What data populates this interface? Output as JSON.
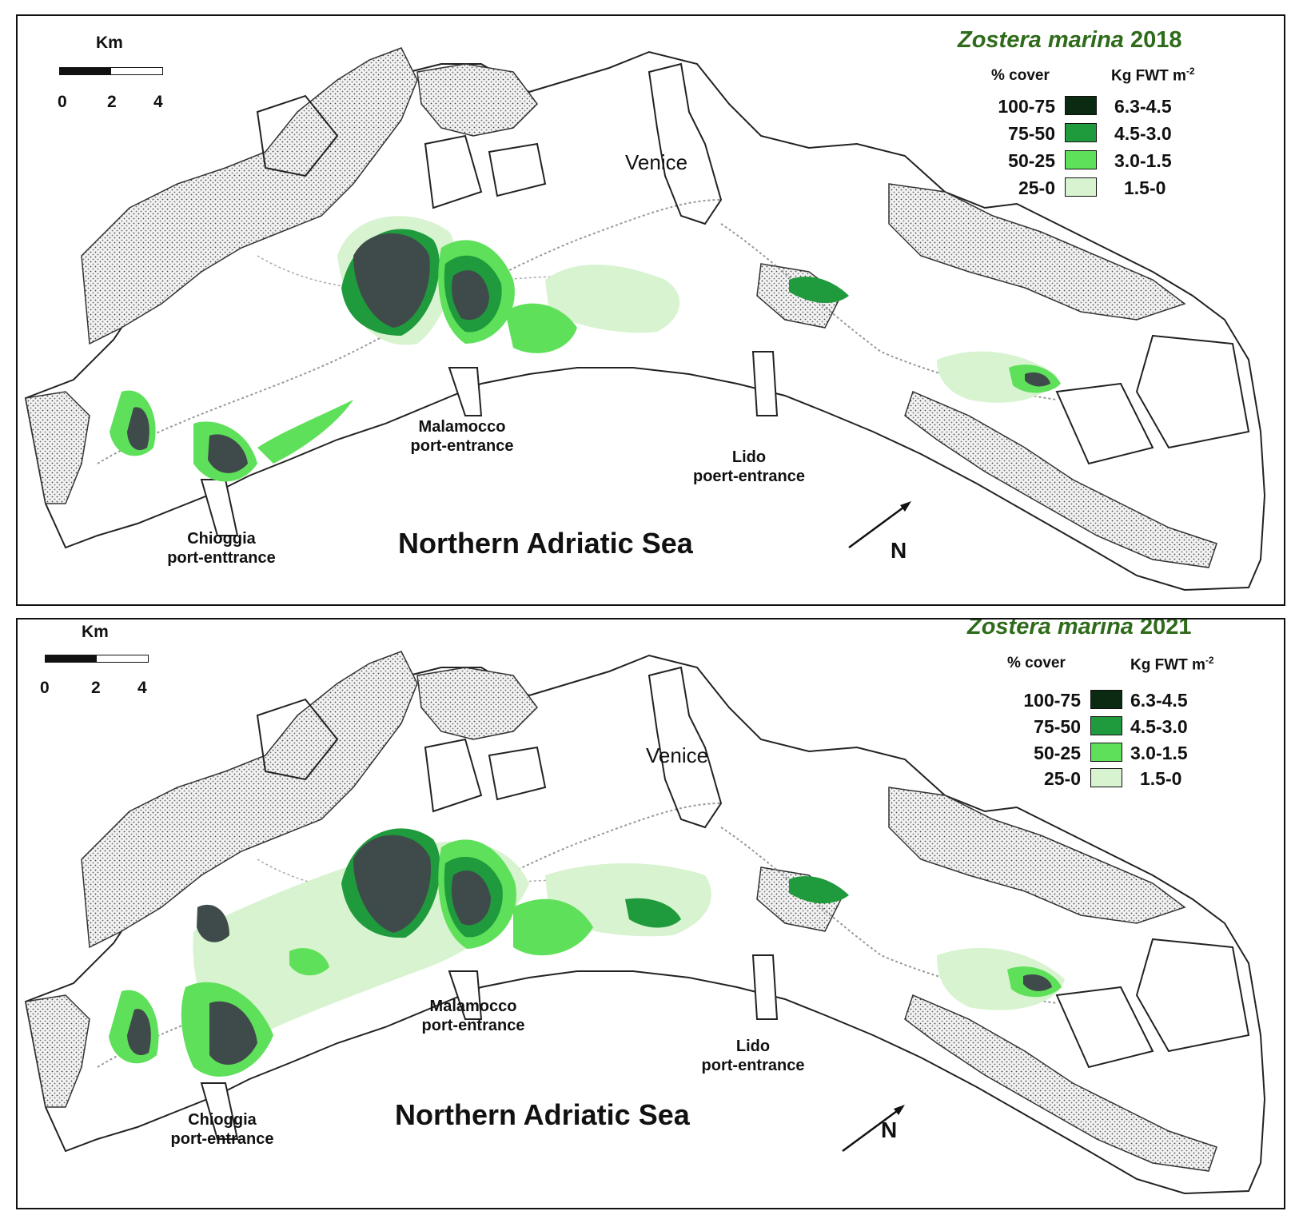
{
  "panels": [
    {
      "title_species": "Zostera marina",
      "title_year": "2018",
      "scale": {
        "unit": "Km",
        "ticks": [
          "0",
          "2",
          "4"
        ]
      },
      "legend": {
        "header_cover": "% cover",
        "header_biomass": "Kg FWT m",
        "header_biomass_exp": "-2",
        "rows": [
          {
            "cover": "100-75",
            "biomass": "6.3-4.5",
            "color": "#0b2a12"
          },
          {
            "cover": "75-50",
            "biomass": "4.5-3.0",
            "color": "#1f9a3c"
          },
          {
            "cover": "50-25",
            "biomass": "3.0-1.5",
            "color": "#5fe05a"
          },
          {
            "cover": "25-0",
            "biomass": "1.5-0",
            "color": "#d7f3cf"
          }
        ]
      },
      "labels": {
        "venice": "Venice",
        "malamocco": [
          "Malamocco",
          "port-entrance"
        ],
        "lido": [
          "Lido",
          "poert-entrance"
        ],
        "chioggia": [
          "Chioggia",
          "port-enttrance"
        ],
        "sea": "Northern Adriatic Sea",
        "north": "N"
      }
    },
    {
      "title_species": "Zostera marina",
      "title_year": "2021",
      "scale": {
        "unit": "Km",
        "ticks": [
          "0",
          "2",
          "4"
        ]
      },
      "legend": {
        "header_cover": "% cover",
        "header_biomass": "Kg FWT m",
        "header_biomass_exp": "-2",
        "rows": [
          {
            "cover": "100-75",
            "biomass": "6.3-4.5",
            "color": "#0b2a12"
          },
          {
            "cover": "75-50",
            "biomass": "4.5-3.0",
            "color": "#1f9a3c"
          },
          {
            "cover": "50-25",
            "biomass": "3.0-1.5",
            "color": "#5fe05a"
          },
          {
            "cover": "25-0",
            "biomass": "1.5-0",
            "color": "#d7f3cf"
          }
        ]
      },
      "labels": {
        "venice": "Venice",
        "malamocco": [
          "Malamocco",
          "port-entrance"
        ],
        "lido": [
          "Lido",
          "port-entrance"
        ],
        "chioggia": [
          "Chioggia",
          "port-entrance"
        ],
        "sea": "Northern Adriatic Sea",
        "north": "N"
      }
    }
  ]
}
